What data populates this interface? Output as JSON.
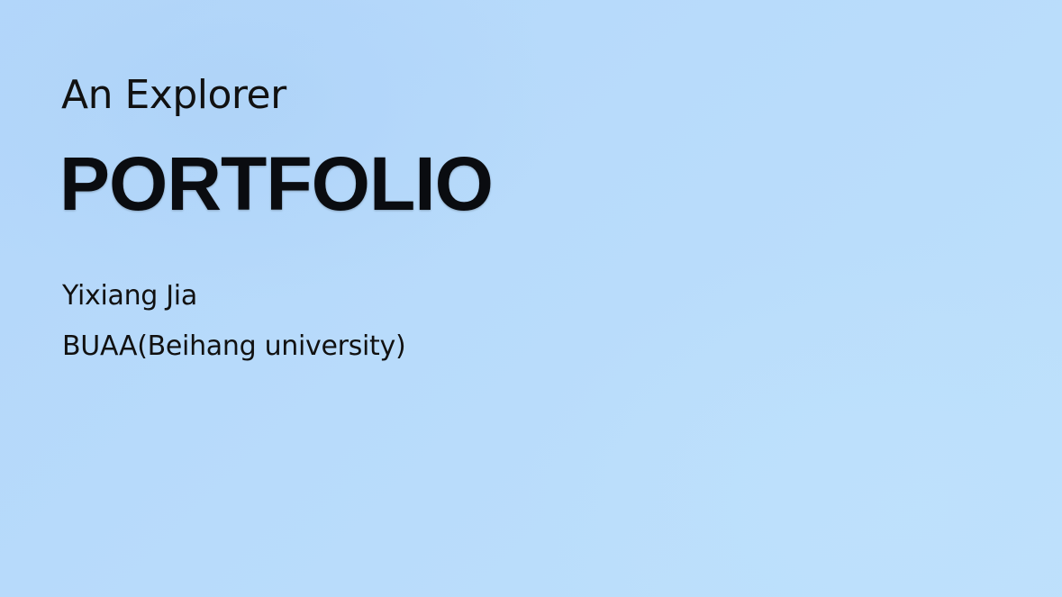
{
  "slide": {
    "subtitle": "An Explorer",
    "title": "PORTFOLIO",
    "author": "Yixiang Jia",
    "affiliation": "BUAA(Beihang university)"
  },
  "colors": {
    "background": "#b7dbfb",
    "text": "#111111",
    "title_text": "#0a0c10"
  }
}
